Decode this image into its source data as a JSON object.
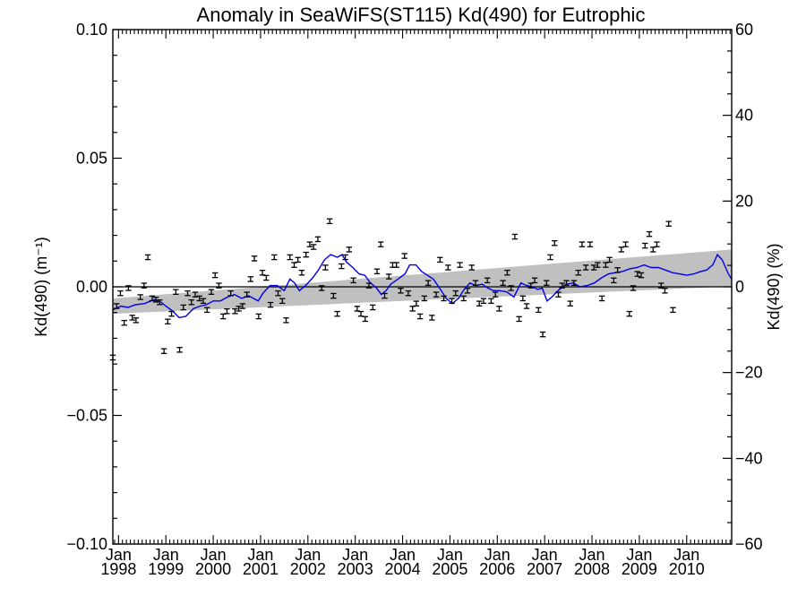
{
  "chart_data": {
    "type": "scatter",
    "title": "Anomaly in SeaWiFS(ST115) Kd(490) for Eutrophic",
    "ylabel_left": "Kd(490) (m⁻¹)",
    "ylabel_right": "Kd(490) (%)",
    "xlim": [
      1997.88,
      2010.95
    ],
    "ylim": [
      -0.1,
      0.1
    ],
    "ylim_right": [
      -60,
      60
    ],
    "grid": false,
    "x_tick_labels": [
      {
        "x": 1998.0,
        "month": "Jan",
        "year": "1998"
      },
      {
        "x": 1999.0,
        "month": "Jan",
        "year": "1999"
      },
      {
        "x": 2000.0,
        "month": "Jan",
        "year": "2000"
      },
      {
        "x": 2001.0,
        "month": "Jan",
        "year": "2001"
      },
      {
        "x": 2002.0,
        "month": "Jan",
        "year": "2002"
      },
      {
        "x": 2003.0,
        "month": "Jan",
        "year": "2003"
      },
      {
        "x": 2004.0,
        "month": "Jan",
        "year": "2004"
      },
      {
        "x": 2005.0,
        "month": "Jan",
        "year": "2005"
      },
      {
        "x": 2006.0,
        "month": "Jan",
        "year": "2006"
      },
      {
        "x": 2007.0,
        "month": "Jan",
        "year": "2007"
      },
      {
        "x": 2008.0,
        "month": "Jan",
        "year": "2008"
      },
      {
        "x": 2009.0,
        "month": "Jan",
        "year": "2009"
      },
      {
        "x": 2010.0,
        "month": "Jan",
        "year": "2010"
      }
    ],
    "y_tick_labels_left": [
      {
        "v": 0.1,
        "label": "0.10"
      },
      {
        "v": 0.05,
        "label": "0.05"
      },
      {
        "v": 0.0,
        "label": "0.00"
      },
      {
        "v": -0.05,
        "label": "−0.05"
      },
      {
        "v": -0.1,
        "label": "−0.10"
      }
    ],
    "y_tick_labels_right": [
      {
        "v": 60,
        "label": "60"
      },
      {
        "v": 40,
        "label": "40"
      },
      {
        "v": 20,
        "label": "20"
      },
      {
        "v": 0,
        "label": "0"
      },
      {
        "v": -20,
        "label": "−20"
      },
      {
        "v": -40,
        "label": "−40"
      },
      {
        "v": -60,
        "label": "−60"
      }
    ],
    "zero_line": 0.0,
    "trend_band": {
      "x": [
        1997.88,
        2010.95
      ],
      "upper": [
        -0.0045,
        0.0145
      ],
      "lower": [
        -0.0105,
        0.0002
      ],
      "color": "#c0c0c0"
    },
    "smoothed_series": {
      "color": "#0000e6",
      "points": [
        [
          1997.88,
          -0.009
        ],
        [
          1998.05,
          -0.0075
        ],
        [
          1998.2,
          -0.008
        ],
        [
          1998.35,
          -0.007
        ],
        [
          1998.55,
          -0.0065
        ],
        [
          1998.75,
          -0.005
        ],
        [
          1998.9,
          -0.006
        ],
        [
          1999.0,
          -0.0075
        ],
        [
          1999.15,
          -0.0095
        ],
        [
          1999.28,
          -0.012
        ],
        [
          1999.42,
          -0.0115
        ],
        [
          1999.58,
          -0.0085
        ],
        [
          1999.72,
          -0.0075
        ],
        [
          1999.85,
          -0.007
        ],
        [
          2000.0,
          -0.0055
        ],
        [
          2000.15,
          -0.0055
        ],
        [
          2000.3,
          -0.004
        ],
        [
          2000.45,
          -0.003
        ],
        [
          2000.6,
          -0.0045
        ],
        [
          2000.75,
          -0.0035
        ],
        [
          2000.85,
          -0.0045
        ],
        [
          2000.95,
          -0.0055
        ],
        [
          2001.05,
          -0.0025
        ],
        [
          2001.2,
          0.0005
        ],
        [
          2001.35,
          0.0005
        ],
        [
          2001.5,
          -0.0015
        ],
        [
          2001.62,
          0.003
        ],
        [
          2001.72,
          0.0015
        ],
        [
          2001.82,
          -0.0015
        ],
        [
          2001.95,
          0.0005
        ],
        [
          2002.1,
          0.0035
        ],
        [
          2002.22,
          0.0065
        ],
        [
          2002.35,
          0.0105
        ],
        [
          2002.48,
          0.0125
        ],
        [
          2002.62,
          0.0115
        ],
        [
          2002.72,
          0.0125
        ],
        [
          2002.82,
          0.0095
        ],
        [
          2002.95,
          0.0075
        ],
        [
          2003.08,
          0.005
        ],
        [
          2003.2,
          0.0045
        ],
        [
          2003.32,
          0.0015
        ],
        [
          2003.45,
          -0.0005
        ],
        [
          2003.55,
          -0.003
        ],
        [
          2003.65,
          -0.0015
        ],
        [
          2003.75,
          0.001
        ],
        [
          2003.9,
          0.003
        ],
        [
          2004.05,
          0.005
        ],
        [
          2004.15,
          0.0085
        ],
        [
          2004.28,
          0.0085
        ],
        [
          2004.4,
          0.006
        ],
        [
          2004.52,
          0.0045
        ],
        [
          2004.65,
          0.003
        ],
        [
          2004.78,
          -0.0005
        ],
        [
          2004.92,
          -0.0045
        ],
        [
          2005.05,
          -0.0065
        ],
        [
          2005.18,
          -0.0045
        ],
        [
          2005.3,
          -0.001
        ],
        [
          2005.42,
          0.0015
        ],
        [
          2005.55,
          0.0005
        ],
        [
          2005.68,
          0.001
        ],
        [
          2005.8,
          -0.0005
        ],
        [
          2005.92,
          -0.0015
        ],
        [
          2006.05,
          -0.0015
        ],
        [
          2006.2,
          -0.002
        ],
        [
          2006.35,
          -0.004
        ],
        [
          2006.5,
          0.0015
        ],
        [
          2006.62,
          0.0005
        ],
        [
          2006.75,
          0.0
        ],
        [
          2006.85,
          -0.001
        ],
        [
          2006.95,
          -0.0005
        ],
        [
          2007.05,
          -0.0055
        ],
        [
          2007.15,
          -0.004
        ],
        [
          2007.28,
          -0.0015
        ],
        [
          2007.45,
          0.001
        ],
        [
          2007.6,
          0.0015
        ],
        [
          2007.75,
          0.0
        ],
        [
          2007.9,
          0.0005
        ],
        [
          2008.05,
          0.0015
        ],
        [
          2008.2,
          0.0035
        ],
        [
          2008.35,
          0.005
        ],
        [
          2008.5,
          0.0055
        ],
        [
          2008.65,
          0.006
        ],
        [
          2008.8,
          0.007
        ],
        [
          2008.95,
          0.0075
        ],
        [
          2009.1,
          0.0085
        ],
        [
          2009.25,
          0.0075
        ],
        [
          2009.4,
          0.0075
        ],
        [
          2009.55,
          0.0065
        ],
        [
          2009.7,
          0.0055
        ],
        [
          2009.85,
          0.005
        ],
        [
          2010.0,
          0.0045
        ],
        [
          2010.15,
          0.005
        ],
        [
          2010.3,
          0.006
        ],
        [
          2010.42,
          0.0065
        ],
        [
          2010.55,
          0.0085
        ],
        [
          2010.65,
          0.0125
        ],
        [
          2010.75,
          0.0105
        ],
        [
          2010.88,
          0.005
        ],
        [
          2010.95,
          0.003
        ]
      ]
    },
    "monthly_points": [
      [
        1997.88,
        -0.0275
      ],
      [
        1997.96,
        -0.0075
      ],
      [
        1998.04,
        -0.0025
      ],
      [
        1998.12,
        -0.014
      ],
      [
        1998.21,
        -0.0005
      ],
      [
        1998.29,
        -0.012
      ],
      [
        1998.37,
        -0.013
      ],
      [
        1998.46,
        -0.004
      ],
      [
        1998.54,
        0.0005
      ],
      [
        1998.62,
        0.0115
      ],
      [
        1998.71,
        -0.0045
      ],
      [
        1998.79,
        -0.005
      ],
      [
        1998.87,
        -0.006
      ],
      [
        1998.96,
        -0.025
      ],
      [
        1999.04,
        -0.0135
      ],
      [
        1999.12,
        -0.0105
      ],
      [
        1999.21,
        -0.002
      ],
      [
        1999.29,
        -0.0245
      ],
      [
        1999.37,
        -0.008
      ],
      [
        1999.46,
        -0.0025
      ],
      [
        1999.54,
        -0.006
      ],
      [
        1999.62,
        -0.003
      ],
      [
        1999.71,
        -0.0045
      ],
      [
        1999.79,
        -0.0055
      ],
      [
        1999.87,
        -0.009
      ],
      [
        1999.96,
        -0.002
      ],
      [
        2000.04,
        0.0045
      ],
      [
        2000.12,
        0.0005
      ],
      [
        2000.21,
        -0.0115
      ],
      [
        2000.29,
        -0.0095
      ],
      [
        2000.37,
        -0.0025
      ],
      [
        2000.46,
        -0.0095
      ],
      [
        2000.54,
        -0.0085
      ],
      [
        2000.62,
        -0.0075
      ],
      [
        2000.71,
        -0.003
      ],
      [
        2000.79,
        0.003
      ],
      [
        2000.87,
        0.011
      ],
      [
        2000.96,
        -0.0115
      ],
      [
        2001.04,
        0.0055
      ],
      [
        2001.12,
        0.0035
      ],
      [
        2001.21,
        -0.007
      ],
      [
        2001.29,
        0.0115
      ],
      [
        2001.37,
        -0.0025
      ],
      [
        2001.46,
        -0.0055
      ],
      [
        2001.54,
        -0.013
      ],
      [
        2001.62,
        0.0115
      ],
      [
        2001.71,
        0.0085
      ],
      [
        2001.79,
        0.0105
      ],
      [
        2001.87,
        0.0055
      ],
      [
        2001.96,
        0.0125
      ],
      [
        2002.04,
        0.0165
      ],
      [
        2002.12,
        0.0155
      ],
      [
        2002.21,
        0.0185
      ],
      [
        2002.29,
        -0.0005
      ],
      [
        2002.37,
        0.0075
      ],
      [
        2002.46,
        0.0255
      ],
      [
        2002.54,
        -0.0035
      ],
      [
        2002.62,
        -0.0105
      ],
      [
        2002.71,
        0.008
      ],
      [
        2002.79,
        0.0115
      ],
      [
        2002.87,
        0.0145
      ],
      [
        2002.96,
        0.0025
      ],
      [
        2003.04,
        -0.0085
      ],
      [
        2003.12,
        -0.0105
      ],
      [
        2003.21,
        -0.0125
      ],
      [
        2003.29,
        0.0005
      ],
      [
        2003.37,
        -0.008
      ],
      [
        2003.46,
        0.006
      ],
      [
        2003.54,
        0.0165
      ],
      [
        2003.62,
        -0.0035
      ],
      [
        2003.71,
        0.004
      ],
      [
        2003.79,
        0.0085
      ],
      [
        2003.87,
        0.0085
      ],
      [
        2003.96,
        -0.0015
      ],
      [
        2004.04,
        0.012
      ],
      [
        2004.12,
        -0.0025
      ],
      [
        2004.21,
        -0.0085
      ],
      [
        2004.29,
        -0.0065
      ],
      [
        2004.37,
        -0.0115
      ],
      [
        2004.46,
        -0.0045
      ],
      [
        2004.54,
        0.0015
      ],
      [
        2004.62,
        -0.012
      ],
      [
        2004.71,
        -0.003
      ],
      [
        2004.79,
        0.0105
      ],
      [
        2004.87,
        -0.0045
      ],
      [
        2004.96,
        0.0075
      ],
      [
        2005.04,
        -0.0055
      ],
      [
        2005.12,
        -0.0025
      ],
      [
        2005.21,
        0.0085
      ],
      [
        2005.29,
        -0.0045
      ],
      [
        2005.37,
        -0.0015
      ],
      [
        2005.46,
        0.0075
      ],
      [
        2005.54,
        0.0015
      ],
      [
        2005.62,
        -0.0065
      ],
      [
        2005.71,
        -0.0055
      ],
      [
        2005.79,
        0.0025
      ],
      [
        2005.87,
        -0.0055
      ],
      [
        2005.96,
        -0.003
      ],
      [
        2006.04,
        -0.0085
      ],
      [
        2006.12,
        0.0015
      ],
      [
        2006.21,
        0.0055
      ],
      [
        2006.29,
        -0.0005
      ],
      [
        2006.37,
        0.0195
      ],
      [
        2006.46,
        -0.0125
      ],
      [
        2006.54,
        -0.0045
      ],
      [
        2006.62,
        -0.0075
      ],
      [
        2006.71,
        0.0005
      ],
      [
        2006.79,
        0.0025
      ],
      [
        2006.87,
        -0.009
      ],
      [
        2006.96,
        -0.0185
      ],
      [
        2007.04,
        0.0015
      ],
      [
        2007.12,
        0.0115
      ],
      [
        2007.21,
        0.017
      ],
      [
        2007.29,
        -0.003
      ],
      [
        2007.37,
        0.0005
      ],
      [
        2007.46,
        0.0015
      ],
      [
        2007.54,
        -0.0065
      ],
      [
        2007.62,
        0.0015
      ],
      [
        2007.71,
        0.0055
      ],
      [
        2007.79,
        0.0165
      ],
      [
        2007.87,
        0.0075
      ],
      [
        2007.96,
        0.0165
      ],
      [
        2008.04,
        0.0075
      ],
      [
        2008.12,
        0.0085
      ],
      [
        2008.21,
        -0.0045
      ],
      [
        2008.29,
        0.0085
      ],
      [
        2008.37,
        0.0105
      ],
      [
        2008.46,
        0.0025
      ],
      [
        2008.54,
        0.0065
      ],
      [
        2008.62,
        0.0145
      ],
      [
        2008.71,
        0.0165
      ],
      [
        2008.79,
        -0.0105
      ],
      [
        2008.87,
        -0.0005
      ],
      [
        2008.96,
        0.005
      ],
      [
        2009.04,
        0.0045
      ],
      [
        2009.12,
        0.016
      ],
      [
        2009.21,
        0.0205
      ],
      [
        2009.29,
        0.0145
      ],
      [
        2009.37,
        0.0165
      ],
      [
        2009.46,
        0.0005
      ],
      [
        2009.54,
        -0.0015
      ],
      [
        2009.62,
        0.0245
      ],
      [
        2009.71,
        -0.009
      ]
    ]
  }
}
